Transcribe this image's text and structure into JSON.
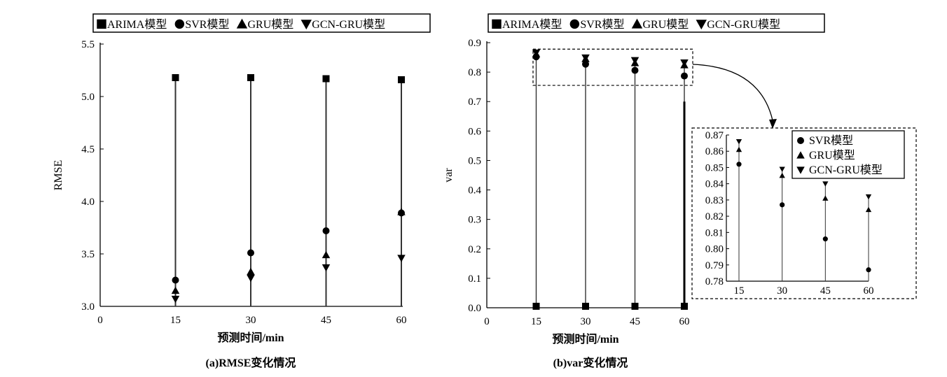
{
  "colors": {
    "ink": "#000000",
    "stem": "#333333",
    "background": "#ffffff"
  },
  "chart_data": [
    {
      "id": "a",
      "type": "scatter",
      "caption": "(a)RMSE变化情况",
      "xlabel": "预测时间/min",
      "ylabel": "RMSE",
      "xlim": [
        0,
        60
      ],
      "ylim": [
        3.0,
        5.5
      ],
      "xticks": [
        "0",
        "15",
        "30",
        "45",
        "60"
      ],
      "yticks": [
        "3.0",
        "3.5",
        "4.0",
        "4.5",
        "5.0",
        "5.5"
      ],
      "grid": false,
      "legend_position": "top",
      "x": [
        15,
        30,
        45,
        60
      ],
      "series": [
        {
          "name": "ARIMA模型",
          "marker": "square",
          "values": [
            5.18,
            5.18,
            5.17,
            5.16
          ]
        },
        {
          "name": "SVR模型",
          "marker": "circle",
          "values": [
            3.25,
            3.51,
            3.72,
            3.89
          ]
        },
        {
          "name": "GRU模型",
          "marker": "triangle-up",
          "values": [
            3.15,
            3.33,
            3.49,
            3.9
          ]
        },
        {
          "name": "GCN-GRU模型",
          "marker": "triangle-down",
          "values": [
            3.07,
            3.27,
            3.37,
            3.46
          ]
        }
      ]
    },
    {
      "id": "b",
      "type": "scatter",
      "caption": "(b)var变化情况",
      "xlabel": "预测时间/min",
      "ylabel": "var",
      "xlim": [
        0,
        60
      ],
      "ylim": [
        0.0,
        0.9
      ],
      "xticks": [
        "0",
        "15",
        "30",
        "45",
        "60"
      ],
      "yticks": [
        "0.0",
        "0.1",
        "0.2",
        "0.3",
        "0.4",
        "0.5",
        "0.6",
        "0.7",
        "0.8",
        "0.9"
      ],
      "grid": false,
      "legend_position": "top",
      "x": [
        15,
        30,
        45,
        60
      ],
      "series": [
        {
          "name": "ARIMA模型",
          "marker": "square",
          "values": [
            0.005,
            0.005,
            0.005,
            0.005
          ]
        },
        {
          "name": "SVR模型",
          "marker": "circle",
          "values": [
            0.852,
            0.827,
            0.806,
            0.787
          ]
        },
        {
          "name": "GRU模型",
          "marker": "triangle-up",
          "values": [
            0.861,
            0.845,
            0.831,
            0.824
          ]
        },
        {
          "name": "GCN-GRU模型",
          "marker": "triangle-down",
          "values": [
            0.866,
            0.849,
            0.84,
            0.832
          ]
        }
      ]
    },
    {
      "id": "b-inset",
      "type": "scatter",
      "xlim": [
        15,
        60
      ],
      "ylim": [
        0.78,
        0.87
      ],
      "xticks": [
        "15",
        "30",
        "45",
        "60"
      ],
      "yticks": [
        "0.78",
        "0.79",
        "0.80",
        "0.81",
        "0.82",
        "0.83",
        "0.84",
        "0.85",
        "0.86",
        "0.87"
      ],
      "grid": false,
      "legend_position": "top-right",
      "x": [
        15,
        30,
        45,
        60
      ],
      "series": [
        {
          "name": "SVR模型",
          "marker": "circle",
          "values": [
            0.852,
            0.827,
            0.806,
            0.787
          ]
        },
        {
          "name": "GRU模型",
          "marker": "triangle-up",
          "values": [
            0.861,
            0.845,
            0.831,
            0.824
          ]
        },
        {
          "name": "GCN-GRU模型",
          "marker": "triangle-down",
          "values": [
            0.866,
            0.849,
            0.84,
            0.832
          ]
        }
      ]
    }
  ]
}
